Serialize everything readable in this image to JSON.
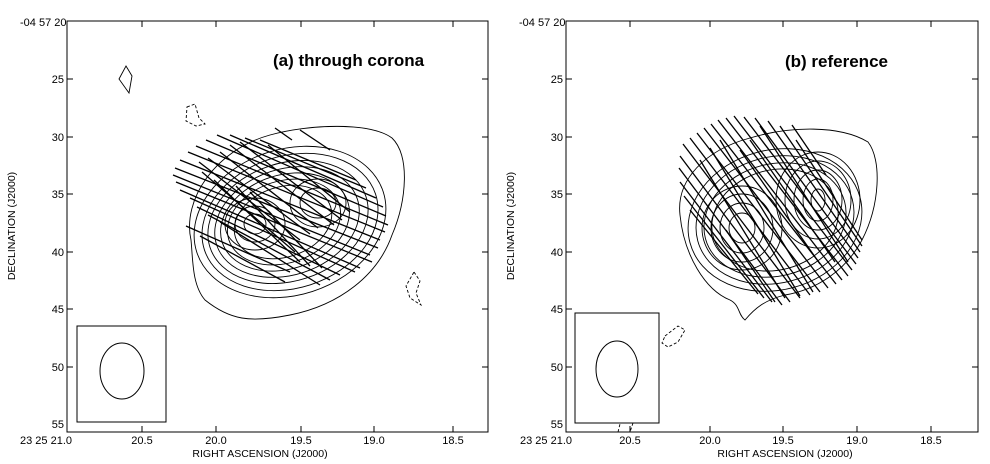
{
  "panels": [
    {
      "title": "(a) through corona",
      "ylabel": "DECLINATION (J2000)",
      "xlabel": "RIGHT ASCENSION (J2000)",
      "y_top_label": "-04 57 20",
      "y_ticks": [
        "25",
        "30",
        "35",
        "40",
        "45",
        "50",
        "55"
      ],
      "x_first_label": "23 25 21.0",
      "x_ticks": [
        "20.5",
        "20.0",
        "19.5",
        "19.0",
        "18.5"
      ]
    },
    {
      "title": "(b) reference",
      "ylabel": "DECLINATION (J2000)",
      "xlabel": "RIGHT ASCENSION (J2000)",
      "y_top_label": "-04 57 20",
      "y_ticks": [
        "25",
        "30",
        "35",
        "40",
        "45",
        "50",
        "55"
      ],
      "x_first_label": "23 25 21.0",
      "x_ticks": [
        "20.5",
        "20.0",
        "19.5",
        "19.0",
        "18.5"
      ]
    }
  ]
}
